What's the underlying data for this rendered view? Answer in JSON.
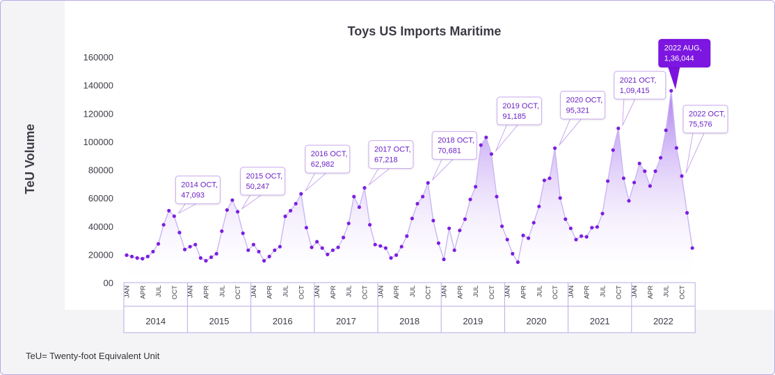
{
  "chart_data": {
    "type": "area",
    "title": "Toys US Imports Maritime",
    "ylabel": "TeU Volume",
    "xlabel": "",
    "ylim": [
      0,
      160000
    ],
    "yticks": [
      0,
      20000,
      40000,
      60000,
      80000,
      100000,
      120000,
      140000,
      160000
    ],
    "ytick_labels": [
      "00",
      "20000",
      "40000",
      "60000",
      "80000",
      "100000",
      "120000",
      "140000",
      "160000"
    ],
    "years": [
      "2014",
      "2015",
      "2016",
      "2017",
      "2018",
      "2019",
      "2020",
      "2021",
      "2022"
    ],
    "month_tick_labels": [
      "JAN",
      "APR",
      "JUL",
      "OCT"
    ],
    "series": [
      {
        "values": [
          [
            19500,
            18500,
            17500,
            17000,
            18500,
            22000,
            27500,
            41000,
            51000,
            47093,
            35500,
            23500
          ],
          [
            25500,
            27000,
            17500,
            15500,
            18000,
            20500,
            36500,
            51500,
            58500,
            50247,
            35000,
            23000
          ],
          [
            27000,
            22000,
            15500,
            18500,
            23000,
            25500,
            47000,
            51000,
            56000,
            62982,
            39000,
            25000
          ],
          [
            29000,
            24500,
            20000,
            23000,
            25000,
            32000,
            42000,
            61000,
            53500,
            67218,
            41000,
            27000
          ],
          [
            26000,
            24500,
            17500,
            19500,
            25500,
            33000,
            45500,
            56000,
            61000,
            70681,
            44000,
            28000
          ],
          [
            16500,
            38500,
            23000,
            37000,
            45000,
            59000,
            68000,
            97500,
            103000,
            91185,
            61000,
            40000
          ],
          [
            30500,
            20500,
            14500,
            33500,
            31500,
            42500,
            54000,
            72500,
            74000,
            95321,
            60000,
            45000
          ],
          [
            38500,
            30500,
            33000,
            32500,
            39000,
            39500,
            49000,
            72000,
            94000,
            109415,
            74000,
            58000
          ],
          [
            71000,
            84500,
            79000,
            68500,
            79000,
            88500,
            108000,
            136044,
            95500,
            75576,
            49500,
            24500
          ]
        ]
      }
    ],
    "annotations": [
      {
        "text": "2014 OCT,",
        "value": "47,093",
        "year": 0,
        "month": 9
      },
      {
        "text": "2015 OCT,",
        "value": "50,247",
        "year": 1,
        "month": 9
      },
      {
        "text": "2016 OCT,",
        "value": "62,982",
        "year": 2,
        "month": 9
      },
      {
        "text": "2017 OCT,",
        "value": "67,218",
        "year": 3,
        "month": 9
      },
      {
        "text": "2018 OCT,",
        "value": "70,681",
        "year": 4,
        "month": 9
      },
      {
        "text": "2019 OCT,",
        "value": "91,185",
        "year": 5,
        "month": 9
      },
      {
        "text": "2020 OCT,",
        "value": "95,321",
        "year": 6,
        "month": 9
      },
      {
        "text": "2021 OCT,",
        "value": "1,09,415",
        "year": 7,
        "month": 9
      },
      {
        "text": "2022 AUG,",
        "value": "1,36,044",
        "year": 8,
        "month": 7,
        "highlight": true
      },
      {
        "text": "2022 OCT,",
        "value": "75,576",
        "year": 8,
        "month": 9
      }
    ],
    "grid": false,
    "colors": {
      "line": "#c9b6f2",
      "point": "#7c1fe0",
      "fill_top": "#a979ef",
      "fill_bottom": "#ffffff",
      "label_text": "#6a1fc5",
      "label_border": "#caa9ef",
      "highlight_fill": "#7b12e0",
      "highlight_text": "#ffffff"
    }
  },
  "footnote": "TeU= Twenty-foot Equivalent Unit"
}
